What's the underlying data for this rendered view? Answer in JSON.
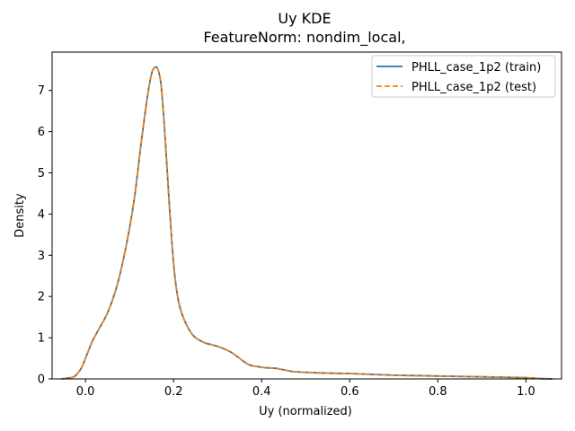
{
  "chart_data": {
    "type": "line",
    "title": "Uy KDE",
    "subtitle": "FeatureNorm: nondim_local,",
    "xlabel": "Uy (normalized)",
    "ylabel": "Density",
    "xlim": [
      -0.0757,
      1.0807
    ],
    "ylim": [
      0,
      7.93
    ],
    "xticks": [
      {
        "value": 0.0,
        "label": "0.0"
      },
      {
        "value": 0.2,
        "label": "0.2"
      },
      {
        "value": 0.4,
        "label": "0.4"
      },
      {
        "value": 0.6,
        "label": "0.6"
      },
      {
        "value": 0.8,
        "label": "0.8"
      },
      {
        "value": 1.0,
        "label": "1.0"
      }
    ],
    "yticks": [
      {
        "value": 0,
        "label": "0"
      },
      {
        "value": 1,
        "label": "1"
      },
      {
        "value": 2,
        "label": "2"
      },
      {
        "value": 3,
        "label": "3"
      },
      {
        "value": 4,
        "label": "4"
      },
      {
        "value": 5,
        "label": "5"
      },
      {
        "value": 6,
        "label": "6"
      },
      {
        "value": 7,
        "label": "7"
      }
    ],
    "grid": false,
    "legend_position": "top-right",
    "series": [
      {
        "name": "PHLL_case_1p2 (train)",
        "color": "#1f77b4",
        "style": "solid",
        "x": [
          -0.055,
          -0.04,
          -0.025,
          -0.01,
          0.0,
          0.015,
          0.03,
          0.05,
          0.07,
          0.09,
          0.11,
          0.125,
          0.14,
          0.15,
          0.158,
          0.165,
          0.172,
          0.18,
          0.19,
          0.2,
          0.21,
          0.22,
          0.235,
          0.25,
          0.27,
          0.29,
          0.31,
          0.33,
          0.35,
          0.37,
          0.39,
          0.41,
          0.43,
          0.45,
          0.47,
          0.5,
          0.55,
          0.6,
          0.65,
          0.7,
          0.75,
          0.8,
          0.85,
          0.9,
          0.95,
          1.0,
          1.03,
          1.06
        ],
        "y": [
          0.0,
          0.02,
          0.06,
          0.25,
          0.5,
          0.9,
          1.2,
          1.6,
          2.2,
          3.1,
          4.3,
          5.6,
          6.8,
          7.4,
          7.56,
          7.5,
          7.1,
          6.0,
          4.3,
          2.8,
          1.95,
          1.55,
          1.2,
          1.0,
          0.88,
          0.82,
          0.75,
          0.65,
          0.5,
          0.35,
          0.3,
          0.27,
          0.26,
          0.22,
          0.18,
          0.16,
          0.14,
          0.13,
          0.11,
          0.09,
          0.08,
          0.07,
          0.06,
          0.05,
          0.04,
          0.03,
          0.01,
          0.0
        ]
      },
      {
        "name": "PHLL_case_1p2 (test)",
        "color": "#ff7f0e",
        "style": "dashed",
        "x": [
          -0.055,
          -0.04,
          -0.025,
          -0.01,
          0.0,
          0.015,
          0.03,
          0.05,
          0.07,
          0.09,
          0.11,
          0.125,
          0.14,
          0.15,
          0.158,
          0.165,
          0.172,
          0.18,
          0.19,
          0.2,
          0.21,
          0.22,
          0.235,
          0.25,
          0.27,
          0.29,
          0.31,
          0.33,
          0.35,
          0.37,
          0.39,
          0.41,
          0.43,
          0.45,
          0.47,
          0.5,
          0.55,
          0.6,
          0.65,
          0.7,
          0.75,
          0.8,
          0.85,
          0.9,
          0.95,
          1.0,
          1.03,
          1.06
        ],
        "y": [
          0.0,
          0.02,
          0.06,
          0.25,
          0.5,
          0.9,
          1.2,
          1.6,
          2.2,
          3.1,
          4.3,
          5.6,
          6.8,
          7.4,
          7.56,
          7.5,
          7.1,
          6.0,
          4.3,
          2.8,
          1.95,
          1.55,
          1.2,
          1.0,
          0.88,
          0.82,
          0.75,
          0.65,
          0.5,
          0.35,
          0.3,
          0.27,
          0.26,
          0.22,
          0.18,
          0.16,
          0.14,
          0.13,
          0.11,
          0.09,
          0.08,
          0.07,
          0.06,
          0.05,
          0.04,
          0.03,
          0.01,
          0.0
        ]
      }
    ]
  }
}
